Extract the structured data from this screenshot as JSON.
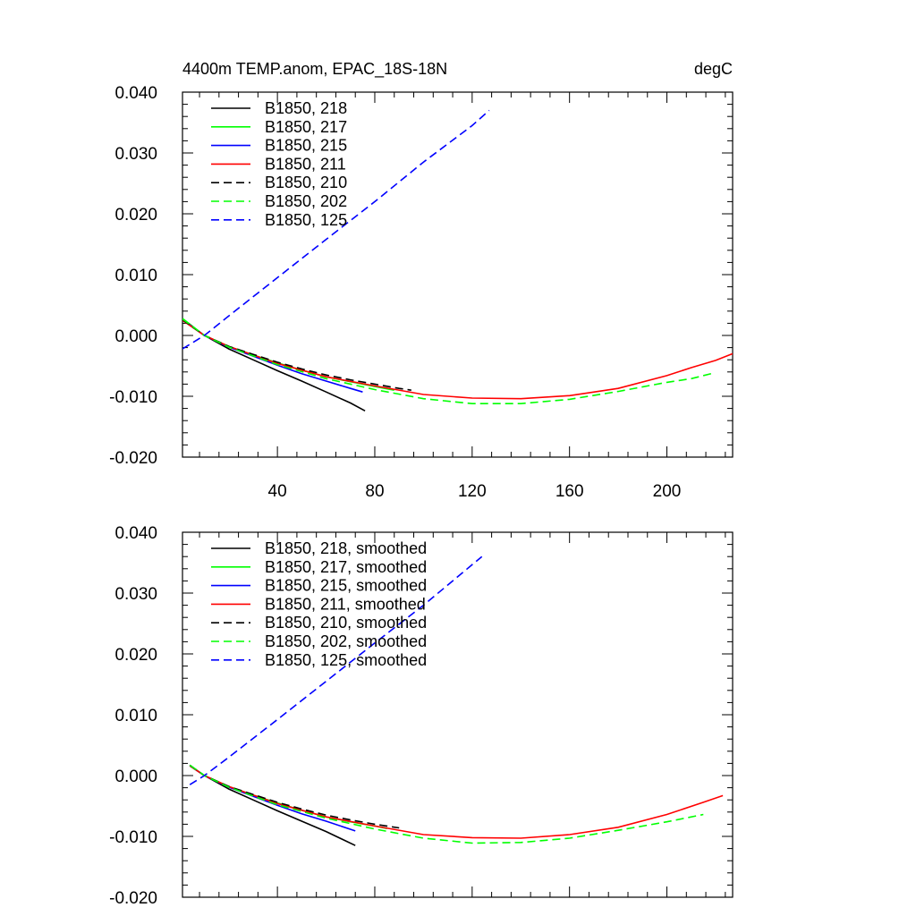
{
  "chart_data": [
    {
      "type": "line",
      "title": "4400m TEMP.anom, EPAC_18S-18N",
      "units": "degC",
      "xlim": [
        1,
        227
      ],
      "ylim": [
        -0.02,
        0.04
      ],
      "xticks": [
        40,
        80,
        120,
        160,
        200
      ],
      "xticklabels": [
        "40",
        "80",
        "120",
        "160",
        "200"
      ],
      "yticks": [
        -0.02,
        -0.01,
        0.0,
        0.01,
        0.02,
        0.03,
        0.04
      ],
      "yticklabels": [
        "-0.020",
        "-0.010",
        "0.000",
        "0.010",
        "0.020",
        "0.030",
        "0.040"
      ],
      "legend_position": "top-left",
      "series": [
        {
          "name": "B1850, 218",
          "color": "#000000",
          "dash": "solid",
          "x": [
            1,
            10,
            20,
            30,
            40,
            50,
            60,
            70,
            76
          ],
          "y": [
            0.0025,
            0.0,
            -0.0022,
            -0.004,
            -0.0058,
            -0.0075,
            -0.0093,
            -0.0111,
            -0.0124
          ]
        },
        {
          "name": "B1850, 217",
          "color": "#00ff00",
          "dash": "solid",
          "x": [
            1,
            10,
            20,
            30,
            40,
            50,
            60,
            70,
            80,
            88
          ],
          "y": [
            0.0028,
            0.0,
            -0.0018,
            -0.0032,
            -0.0045,
            -0.0057,
            -0.0068,
            -0.0076,
            -0.0084,
            -0.009
          ]
        },
        {
          "name": "B1850, 215",
          "color": "#0000ff",
          "dash": "solid",
          "x": [
            1,
            10,
            20,
            30,
            40,
            50,
            60,
            70,
            75
          ],
          "y": [
            0.0026,
            0.0,
            -0.0019,
            -0.0034,
            -0.0049,
            -0.0063,
            -0.0075,
            -0.0087,
            -0.0093
          ]
        },
        {
          "name": "B1850, 211",
          "color": "#ff0000",
          "dash": "solid",
          "x": [
            1,
            10,
            20,
            40,
            60,
            80,
            100,
            120,
            140,
            160,
            180,
            200,
            210,
            220,
            227
          ],
          "y": [
            0.0025,
            0.0,
            -0.0018,
            -0.0046,
            -0.0068,
            -0.0083,
            -0.0097,
            -0.0103,
            -0.0104,
            -0.0099,
            -0.0087,
            -0.0066,
            -0.0053,
            -0.0041,
            -0.003
          ]
        },
        {
          "name": "B1850, 210",
          "color": "#000000",
          "dash": "dashed",
          "x": [
            1,
            10,
            20,
            30,
            40,
            50,
            60,
            70,
            80,
            90,
            95
          ],
          "y": [
            0.0026,
            0.0,
            -0.0018,
            -0.0031,
            -0.0044,
            -0.0055,
            -0.0065,
            -0.0073,
            -0.008,
            -0.0087,
            -0.009
          ]
        },
        {
          "name": "B1850, 202",
          "color": "#00ff00",
          "dash": "dashed",
          "x": [
            1,
            10,
            20,
            40,
            60,
            80,
            100,
            120,
            140,
            160,
            180,
            200,
            210,
            219
          ],
          "y": [
            0.0027,
            0.0,
            -0.0019,
            -0.0048,
            -0.0071,
            -0.0089,
            -0.0104,
            -0.0112,
            -0.0112,
            -0.0105,
            -0.0092,
            -0.0077,
            -0.0071,
            -0.0062
          ]
        },
        {
          "name": "B1850, 125",
          "color": "#0000ff",
          "dash": "dashed",
          "x": [
            1,
            10,
            20,
            40,
            60,
            80,
            100,
            120,
            127
          ],
          "y": [
            -0.0022,
            0.0,
            0.0032,
            0.0095,
            0.0158,
            0.022,
            0.0285,
            0.0345,
            0.037
          ]
        }
      ]
    },
    {
      "type": "line",
      "title": "",
      "units": "",
      "xlim": [
        1,
        227
      ],
      "ylim": [
        -0.02,
        0.04
      ],
      "xticks": [
        40,
        80,
        120,
        160,
        200
      ],
      "xticklabels": [],
      "yticks": [
        -0.02,
        -0.01,
        0.0,
        0.01,
        0.02,
        0.03,
        0.04
      ],
      "yticklabels": [
        "-0.020",
        "-0.010",
        "0.000",
        "0.010",
        "0.020",
        "0.030",
        "0.040"
      ],
      "legend_position": "top-left",
      "series": [
        {
          "name": "B1850, 218, smoothed",
          "color": "#000000",
          "dash": "solid",
          "x": [
            4,
            10,
            20,
            30,
            40,
            50,
            60,
            72
          ],
          "y": [
            0.0016,
            0.0,
            -0.0022,
            -0.004,
            -0.0058,
            -0.0075,
            -0.0092,
            -0.0115
          ]
        },
        {
          "name": "B1850, 217, smoothed",
          "color": "#00ff00",
          "dash": "solid",
          "x": [
            4,
            10,
            20,
            30,
            40,
            50,
            60,
            70,
            80,
            85
          ],
          "y": [
            0.0017,
            0.0,
            -0.0018,
            -0.0032,
            -0.0045,
            -0.0057,
            -0.0068,
            -0.0076,
            -0.0083,
            -0.0087
          ]
        },
        {
          "name": "B1850, 215, smoothed",
          "color": "#0000ff",
          "dash": "solid",
          "x": [
            4,
            10,
            20,
            30,
            40,
            50,
            60,
            72
          ],
          "y": [
            0.0016,
            0.0,
            -0.0019,
            -0.0034,
            -0.0049,
            -0.0063,
            -0.0075,
            -0.0091
          ]
        },
        {
          "name": "B1850, 211, smoothed",
          "color": "#ff0000",
          "dash": "solid",
          "x": [
            4,
            10,
            20,
            40,
            60,
            80,
            100,
            120,
            140,
            160,
            180,
            200,
            215,
            223
          ],
          "y": [
            0.0016,
            0.0,
            -0.0018,
            -0.0046,
            -0.0068,
            -0.0083,
            -0.0097,
            -0.0102,
            -0.0103,
            -0.0097,
            -0.0085,
            -0.0064,
            -0.0044,
            -0.0033
          ]
        },
        {
          "name": "B1850, 210, smoothed",
          "color": "#000000",
          "dash": "dashed",
          "x": [
            4,
            10,
            20,
            30,
            40,
            50,
            60,
            70,
            80,
            90
          ],
          "y": [
            0.0017,
            0.0,
            -0.0018,
            -0.0031,
            -0.0044,
            -0.0055,
            -0.0065,
            -0.0073,
            -0.008,
            -0.0086
          ]
        },
        {
          "name": "B1850, 202, smoothed",
          "color": "#00ff00",
          "dash": "dashed",
          "x": [
            4,
            10,
            20,
            40,
            60,
            80,
            100,
            120,
            140,
            160,
            180,
            200,
            215
          ],
          "y": [
            0.0017,
            0.0,
            -0.0019,
            -0.0048,
            -0.007,
            -0.0088,
            -0.0103,
            -0.0111,
            -0.011,
            -0.0103,
            -0.009,
            -0.0076,
            -0.0064
          ]
        },
        {
          "name": "B1850, 125, smoothed",
          "color": "#0000ff",
          "dash": "dashed",
          "x": [
            4,
            10,
            20,
            40,
            60,
            80,
            100,
            124
          ],
          "y": [
            -0.0015,
            0.0,
            0.003,
            0.0092,
            0.0155,
            0.0218,
            0.028,
            0.036
          ]
        }
      ]
    }
  ]
}
